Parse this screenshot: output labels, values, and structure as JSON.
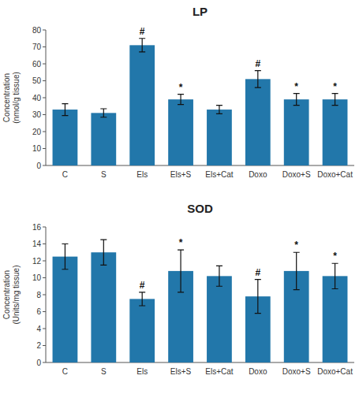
{
  "chart_data": [
    {
      "type": "bar",
      "title": "LP",
      "ylabel": "Concentration\n(nmol/g tissue)",
      "categories": [
        "C",
        "S",
        "Els",
        "Els+S",
        "Els+Cat",
        "Doxo",
        "Doxo+S",
        "Doxo+Cat"
      ],
      "values": [
        33,
        31,
        71,
        39,
        33,
        51,
        39,
        39
      ],
      "errors": [
        3.5,
        2.5,
        4,
        3,
        2.5,
        5,
        3.5,
        3.5
      ],
      "color": "#2277AA",
      "ylim": [
        0,
        80
      ],
      "yticks": [
        0,
        10,
        20,
        30,
        40,
        50,
        60,
        70,
        80
      ],
      "annotations": [
        {
          "index": 2,
          "text": "#"
        },
        {
          "index": 3,
          "text": "*"
        },
        {
          "index": 5,
          "text": "#"
        },
        {
          "index": 6,
          "text": "*"
        },
        {
          "index": 7,
          "text": "*"
        }
      ]
    },
    {
      "type": "bar",
      "title": "SOD",
      "ylabel": "Concentration\n(Units/mg tissue)",
      "categories": [
        "C",
        "S",
        "Els",
        "Els+S",
        "Els+Cat",
        "Doxo",
        "Doxo+S",
        "Doxo+Cat"
      ],
      "values": [
        12.5,
        13,
        7.5,
        10.8,
        10.2,
        7.8,
        10.8,
        10.2
      ],
      "errors": [
        1.5,
        1.5,
        0.8,
        2.5,
        1.2,
        2.0,
        2.2,
        1.5
      ],
      "color": "#2277AA",
      "ylim": [
        0,
        16
      ],
      "yticks": [
        0,
        2,
        4,
        6,
        8,
        10,
        12,
        14,
        16
      ],
      "annotations": [
        {
          "index": 2,
          "text": "#"
        },
        {
          "index": 3,
          "text": "*"
        },
        {
          "index": 5,
          "text": "#"
        },
        {
          "index": 6,
          "text": "*"
        },
        {
          "index": 7,
          "text": "*"
        }
      ]
    }
  ]
}
